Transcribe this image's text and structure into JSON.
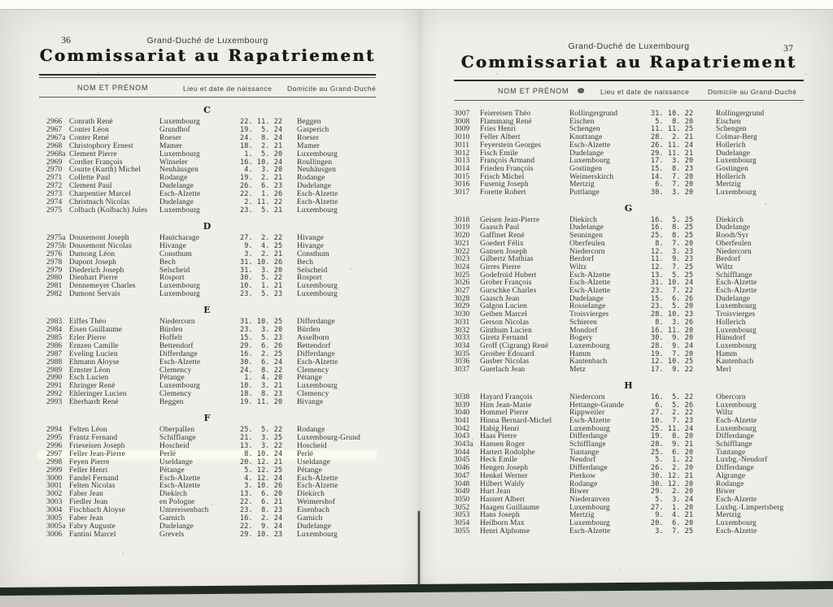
{
  "left_page": {
    "page_number": "36",
    "header_small": "Grand-Duché de Luxembourg",
    "title": "Commissariat au Rapatriement",
    "columns": {
      "name": "NOM ET PRÉNOM",
      "birth": "Lieu et date de naissance",
      "domicile": "Domicile au Grand-Duché"
    },
    "sections": [
      {
        "letter": "C",
        "rows": [
          {
            "id": "2966",
            "name": "Conrath René",
            "place": "Luxembourg",
            "date": "22. 11. 22",
            "domicile": "Beggen"
          },
          {
            "id": "2967",
            "name": "Conter Léon",
            "place": "Grundhof",
            "date": "19. 5. 24",
            "domicile": "Gasperich"
          },
          {
            "id": "2967a",
            "name": "Conter René",
            "place": "Roeser",
            "date": "24. 8. 24",
            "domicile": "Roeser"
          },
          {
            "id": "2968",
            "name": "Christophory Ernest",
            "place": "Mamer",
            "date": "18. 2. 21",
            "domicile": "Mamer"
          },
          {
            "id": "2968a",
            "name": "Clement Pierre",
            "place": "Luxembourg",
            "date": "1. 5. 20",
            "domicile": "Luxembourg"
          },
          {
            "id": "2969",
            "name": "Cordier François",
            "place": "Winseler",
            "date": "16. 10. 24",
            "domicile": "Roullingen"
          },
          {
            "id": "2970",
            "name": "Courte (Kurth) Michel",
            "place": "Neuhäusgen",
            "date": "4. 3. 20",
            "domicile": "Neuhäusgen"
          },
          {
            "id": "2971",
            "name": "Collette Paul",
            "place": "Rodange",
            "date": "19. 2. 21",
            "domicile": "Rodange"
          },
          {
            "id": "2972",
            "name": "Clement Paul",
            "place": "Dudelange",
            "date": "26. 6. 23",
            "domicile": "Dudelange"
          },
          {
            "id": "2973",
            "name": "Charpentier Marcel",
            "place": "Esch-Alzette",
            "date": "22. 1. 26",
            "domicile": "Esch-Alzette"
          },
          {
            "id": "2974",
            "name": "Christnach Nicolas",
            "place": "Dudelange",
            "date": "2. 11. 22",
            "domicile": "Esch-Alzette"
          },
          {
            "id": "2975",
            "name": "Colbach (Kolbach) Jules",
            "place": "Luxembourg",
            "date": "23. 5. 21",
            "domicile": "Luxembourg"
          }
        ]
      },
      {
        "letter": "D",
        "rows": [
          {
            "id": "2975a",
            "name": "Dousemont Joseph",
            "place": "Hautcharage",
            "date": "27. 2. 22",
            "domicile": "Hivange"
          },
          {
            "id": "2975b",
            "name": "Dousemont Nicolas",
            "place": "Hivange",
            "date": "9. 4. 25",
            "domicile": "Hivange"
          },
          {
            "id": "2976",
            "name": "Dumong Léon",
            "place": "Consthum",
            "date": "3. 2. 21",
            "domicile": "Consthum"
          },
          {
            "id": "2978",
            "name": "Dupont Joseph",
            "place": "Bech",
            "date": "31. 10. 26",
            "domicile": "Bech"
          },
          {
            "id": "2979",
            "name": "Diederich Joseph",
            "place": "Selscheid",
            "date": "31. 3. 20",
            "domicile": "Selscheid"
          },
          {
            "id": "2980",
            "name": "Dienhart Pierre",
            "place": "Rosport",
            "date": "30. 5. 22",
            "domicile": "Rosport"
          },
          {
            "id": "2981",
            "name": "Dennemeyer Charles",
            "place": "Luxembourg",
            "date": "10. 1. 21",
            "domicile": "Luxembourg"
          },
          {
            "id": "2982",
            "name": "Dumont Servais",
            "place": "Luxembourg",
            "date": "23. 5. 23",
            "domicile": "Luxembourg"
          }
        ]
      },
      {
        "letter": "E",
        "rows": [
          {
            "id": "2983",
            "name": "Eiffes Théo",
            "place": "Niedercorn",
            "date": "31. 10. 25",
            "domicile": "Differdange"
          },
          {
            "id": "2984",
            "name": "Eisen Guillaume",
            "place": "Bürden",
            "date": "23. 3. 20",
            "domicile": "Bürden"
          },
          {
            "id": "2985",
            "name": "Erler Pierre",
            "place": "Hoffelt",
            "date": "15. 5. 23",
            "domicile": "Asselborn"
          },
          {
            "id": "2986",
            "name": "Ernzen Camille",
            "place": "Bettendorf",
            "date": "29. 6. 26",
            "domicile": "Bettendorf"
          },
          {
            "id": "2987",
            "name": "Eveling Lucien",
            "place": "Differdange",
            "date": "16. 2. 25",
            "domicile": "Differdange"
          },
          {
            "id": "2988",
            "name": "Ehmann Aloyse",
            "place": "Esch-Alzette",
            "date": "30. 6. 24",
            "domicile": "Esch-Alzette"
          },
          {
            "id": "2989",
            "name": "Ernster Léon",
            "place": "Clemency",
            "date": "24. 8. 22",
            "domicile": "Clemency"
          },
          {
            "id": "2990",
            "name": "Esch Lucien",
            "place": "Pétange",
            "date": "1. 4. 20",
            "domicile": "Pétange"
          },
          {
            "id": "2991",
            "name": "Ehringer René",
            "place": "Luxembourg",
            "date": "10. 3. 21",
            "domicile": "Luxembourg"
          },
          {
            "id": "2992",
            "name": "Ehleringer Lucien",
            "place": "Clemency",
            "date": "18. 8. 23",
            "domicile": "Clemency"
          },
          {
            "id": "2993",
            "name": "Eberhardt René",
            "place": "Beggen",
            "date": "19. 11. 20",
            "domicile": "Bivange"
          }
        ]
      },
      {
        "letter": "F",
        "rows": [
          {
            "id": "2994",
            "name": "Felten Léon",
            "place": "Oberpallen",
            "date": "25. 5. 22",
            "domicile": "Rodange"
          },
          {
            "id": "2995",
            "name": "Frantz Fernand",
            "place": "Schifflange",
            "date": "21. 3. 25",
            "domicile": "Luxembourg-Grund"
          },
          {
            "id": "2996",
            "name": "Frieseisen Joseph",
            "place": "Hoscheid",
            "date": "13. 3. 22",
            "domicile": "Hoscheid"
          },
          {
            "id": "2997",
            "name": "Feller Jean-Pierre",
            "place": "Perlé",
            "date": "8. 10. 24",
            "domicile": "Perlé",
            "hl": true
          },
          {
            "id": "2998",
            "name": "Feyen Pierre",
            "place": "Useldange",
            "date": "20. 12. 21",
            "domicile": "Useldange"
          },
          {
            "id": "2999",
            "name": "Feller Henri",
            "place": "Pétange",
            "date": "5. 12. 25",
            "domicile": "Pétange"
          },
          {
            "id": "3000",
            "name": "Fandel Fernand",
            "place": "Esch-Alzette",
            "date": "4. 12. 24",
            "domicile": "Esch-Alzette"
          },
          {
            "id": "3001",
            "name": "Felten Nicolas",
            "place": "Esch-Alzette",
            "date": "3. 10. 26",
            "domicile": "Esch-Alzette"
          },
          {
            "id": "3002",
            "name": "Faber Jean",
            "place": "Diekirch",
            "date": "13. 6. 20",
            "domicile": "Diekirch"
          },
          {
            "id": "3003",
            "name": "Fiedler Jean",
            "place": "en Pologne",
            "date": "22. 6. 21",
            "domicile": "Weimershof"
          },
          {
            "id": "3004",
            "name": "Fischbach Aloyse",
            "place": "Untereisenbach",
            "date": "23. 8. 23",
            "domicile": "Eisenbach"
          },
          {
            "id": "3005",
            "name": "Faber Jean",
            "place": "Garnich",
            "date": "16. 2. 24",
            "domicile": "Garnich"
          },
          {
            "id": "3005a",
            "name": "Fabry Auguste",
            "place": "Dudelange",
            "date": "22. 9. 24",
            "domicile": "Dudelange"
          },
          {
            "id": "3006",
            "name": "Fantini Marcel",
            "place": "Grevels",
            "date": "29. 10. 23",
            "domicile": "Luxembourg"
          }
        ]
      }
    ]
  },
  "right_page": {
    "page_number": "37",
    "header_small": "Grand-Duché de Luxembourg",
    "title": "Commissariat au Rapatriement",
    "columns": {
      "name": "NOM ET PRÉNOM",
      "birth": "Lieu et date de naissance",
      "domicile": "Domicile au Grand-Duché"
    },
    "sections": [
      {
        "letter": "",
        "rows": [
          {
            "id": "3007",
            "name": "Feiereisen Théo",
            "place": "Rollingergrund",
            "date": "31. 10. 22",
            "domicile": "Rollingergrund"
          },
          {
            "id": "3008",
            "name": "Flammang René",
            "place": "Eischen",
            "date": "5. 8. 20",
            "domicile": "Eischen"
          },
          {
            "id": "3009",
            "name": "Fries Henri",
            "place": "Schengen",
            "date": "11. 11. 25",
            "domicile": "Schengen"
          },
          {
            "id": "3010",
            "name": "Feller Albert",
            "place": "Knuttange",
            "date": "28. 2. 21",
            "domicile": "Colmar-Berg"
          },
          {
            "id": "3011",
            "name": "Feyerstein Georges",
            "place": "Esch-Alzette",
            "date": "26. 11. 24",
            "domicile": "Hollerich"
          },
          {
            "id": "3012",
            "name": "Fisch Emile",
            "place": "Dudelange",
            "date": "29. 11. 21",
            "domicile": "Dudelange"
          },
          {
            "id": "3013",
            "name": "François Armand",
            "place": "Luxembourg",
            "date": "17. 3. 20",
            "domicile": "Luxembourg"
          },
          {
            "id": "3014",
            "name": "Frieden François",
            "place": "Gostingen",
            "date": "15. 8. 23",
            "domicile": "Gostingen"
          },
          {
            "id": "3015",
            "name": "Frisch Michel",
            "place": "Weimerskirch",
            "date": "14. 7. 20",
            "domicile": "Hollerich"
          },
          {
            "id": "3016",
            "name": "Fusenig Joseph",
            "place": "Mertzig",
            "date": "6. 7. 20",
            "domicile": "Mertzig"
          },
          {
            "id": "3017",
            "name": "Forette Robert",
            "place": "Puttlange",
            "date": "30. 3. 20",
            "domicile": "Luxembourg"
          }
        ]
      },
      {
        "letter": "G",
        "rows": [
          {
            "id": "3018",
            "name": "Geisen Jean-Pierre",
            "place": "Diekirch",
            "date": "16. 5. 25",
            "domicile": "Diekirch"
          },
          {
            "id": "3019",
            "name": "Gaasch Paul",
            "place": "Dudelange",
            "date": "16. 8. 25",
            "domicile": "Dudelange"
          },
          {
            "id": "3020",
            "name": "Gaffinet René",
            "place": "Senningen",
            "date": "25. 8. 25",
            "domicile": "Roodt/Syr"
          },
          {
            "id": "3021",
            "name": "Goedert Félix",
            "place": "Oberfeulen",
            "date": "8. 7. 20",
            "domicile": "Oberfeulen"
          },
          {
            "id": "3022",
            "name": "Gansen Joseph",
            "place": "Niedercorn",
            "date": "12. 3. 23",
            "domicile": "Niedercorn"
          },
          {
            "id": "3023",
            "name": "Gilbertz Mathias",
            "place": "Berdorf",
            "date": "11. 9. 23",
            "domicile": "Berdorf"
          },
          {
            "id": "3024",
            "name": "Girres Pierre",
            "place": "Wiltz",
            "date": "12. 7. 25",
            "domicile": "Wiltz"
          },
          {
            "id": "3025",
            "name": "Godefroid Hubert",
            "place": "Esch-Alzette",
            "date": "13. 5. 25",
            "domicile": "Schifflange"
          },
          {
            "id": "3026",
            "name": "Grober François",
            "place": "Esch-Alzette",
            "date": "31. 10. 24",
            "domicile": "Esch-Alzette"
          },
          {
            "id": "3027",
            "name": "Gurschke Charles",
            "place": "Esch-Alzette",
            "date": "23. 7. 22",
            "domicile": "Esch-Alzette"
          },
          {
            "id": "3028",
            "name": "Gaasch Jean",
            "place": "Dudelange",
            "date": "15. 6. 26",
            "domicile": "Dudelange"
          },
          {
            "id": "3029",
            "name": "Galgon Lucien",
            "place": "Rosselange",
            "date": "23. 5. 20",
            "domicile": "Luxembourg"
          },
          {
            "id": "3030",
            "name": "Geiben Marcel",
            "place": "Troisvierges",
            "date": "28. 10. 23",
            "domicile": "Troisvierges"
          },
          {
            "id": "3031",
            "name": "Gerson Nicolas",
            "place": "Schieren",
            "date": "8. 3. 26",
            "domicile": "Hollerich"
          },
          {
            "id": "3032",
            "name": "Ginthum Lucien",
            "place": "Mondorf",
            "date": "16. 11. 20",
            "domicile": "Luxembourg"
          },
          {
            "id": "3033",
            "name": "Giretz Fernand",
            "place": "Bogery",
            "date": "30. 9. 20",
            "domicile": "Hünsdorf"
          },
          {
            "id": "3034",
            "name": "Groff (Cigrang) René",
            "place": "Luxembourg",
            "date": "28. 9. 24",
            "domicile": "Luxembourg"
          },
          {
            "id": "3035",
            "name": "Grosber Edouard",
            "place": "Hamm",
            "date": "19. 7. 20",
            "domicile": "Hamm"
          },
          {
            "id": "3036",
            "name": "Gusber Nicolas",
            "place": "Kautenbach",
            "date": "12. 10. 25",
            "domicile": "Kautenbach"
          },
          {
            "id": "3037",
            "name": "Guerlach Jean",
            "place": "Metz",
            "date": "17. 9. 22",
            "domicile": "Merl"
          }
        ]
      },
      {
        "letter": "H",
        "rows": [
          {
            "id": "3038",
            "name": "Hayard François",
            "place": "Niedercorn",
            "date": "16. 5. 22",
            "domicile": "Obercorn"
          },
          {
            "id": "3039",
            "name": "Him Jean-Marie",
            "place": "Hettange-Grande",
            "date": "6. 5. 26",
            "domicile": "Luxembourg"
          },
          {
            "id": "3040",
            "name": "Hommel Pierre",
            "place": "Rippweiler",
            "date": "27. 2. 22",
            "domicile": "Wiltz"
          },
          {
            "id": "3041",
            "name": "Hinna Bernard-Michel",
            "place": "Esch-Alzette",
            "date": "10. 7. 23",
            "domicile": "Esch-Alzette"
          },
          {
            "id": "3042",
            "name": "Habig Henri",
            "place": "Luxembourg",
            "date": "25. 11. 24",
            "domicile": "Luxembourg"
          },
          {
            "id": "3043",
            "name": "Haas Pierre",
            "place": "Differdange",
            "date": "19. 8. 20",
            "domicile": "Differdange"
          },
          {
            "id": "3043a",
            "name": "Hansen Roger",
            "place": "Schifflange",
            "date": "28. 9. 21",
            "domicile": "Schifflange"
          },
          {
            "id": "3044",
            "name": "Hartert Rodolphe",
            "place": "Tuntange",
            "date": "25. 6. 20",
            "domicile": "Tuntange"
          },
          {
            "id": "3045",
            "name": "Heck Emile",
            "place": "Neudorf",
            "date": "5. 1. 22",
            "domicile": "Luxbg.-Neudorf"
          },
          {
            "id": "3046",
            "name": "Hengen Joseph",
            "place": "Differdange",
            "date": "26. 2. 20",
            "domicile": "Differdange"
          },
          {
            "id": "3047",
            "name": "Henkel Werner",
            "place": "Pierkow",
            "date": "30. 12. 21",
            "domicile": "Algrange"
          },
          {
            "id": "3048",
            "name": "Hilbert Waldy",
            "place": "Rodange",
            "date": "30. 12. 20",
            "domicile": "Rodange"
          },
          {
            "id": "3049",
            "name": "Hurt Jean",
            "place": "Biwer",
            "date": "29. 2. 20",
            "domicile": "Biwer"
          },
          {
            "id": "3050",
            "name": "Hastert Albert",
            "place": "Niederanven",
            "date": "5. 3. 24",
            "domicile": "Esch-Alzette"
          },
          {
            "id": "3052",
            "name": "Haagen Guillaume",
            "place": "Luxembourg",
            "date": "27. 1. 20",
            "domicile": "Luxbg.-Limpertsberg"
          },
          {
            "id": "3053",
            "name": "Hans Joseph",
            "place": "Mertzig",
            "date": "9. 4. 21",
            "domicile": "Mertzig"
          },
          {
            "id": "3054",
            "name": "Heilborn Max",
            "place": "Luxembourg",
            "date": "20. 6. 20",
            "domicile": "Luxembourg"
          },
          {
            "id": "3055",
            "name": "Henri Alphonse",
            "place": "Esch-Alzette",
            "date": "3. 7. 25",
            "domicile": "Esch-Alzette"
          }
        ]
      }
    ]
  }
}
